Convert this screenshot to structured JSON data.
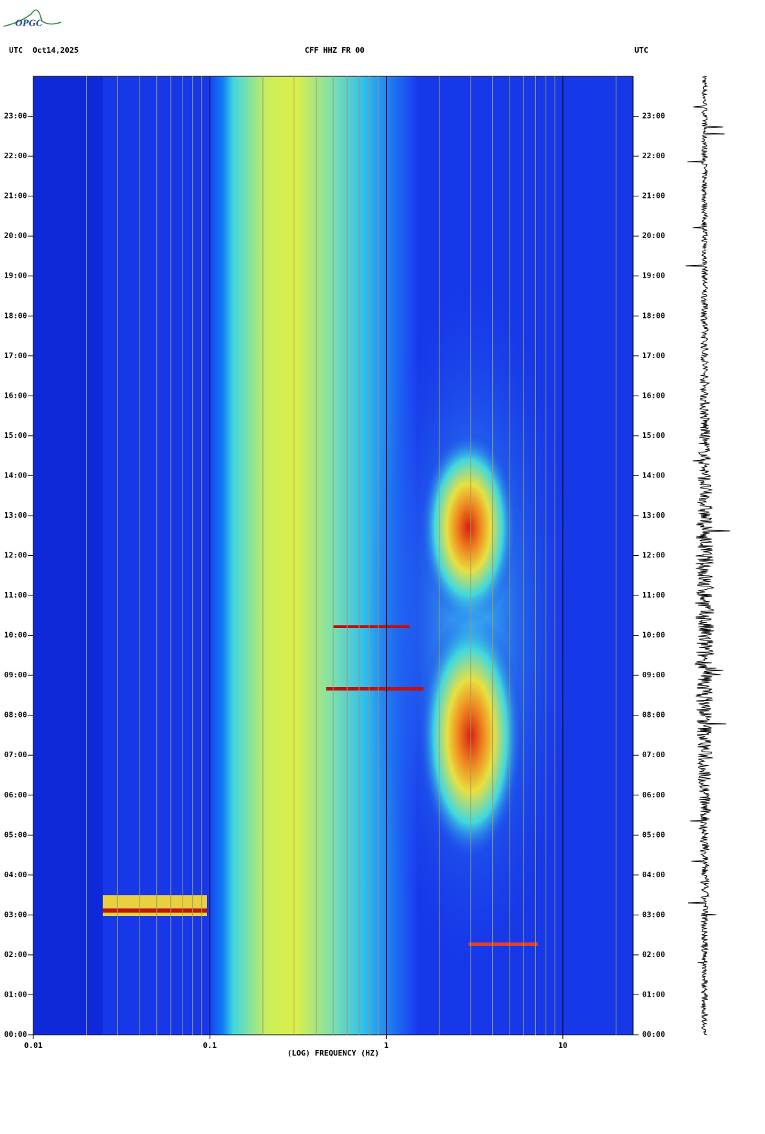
{
  "logo": "OPGC",
  "header": {
    "left_zone": "UTC",
    "date": "Oct14,2025",
    "station": "CFF HHZ FR 00",
    "right_zone": "UTC"
  },
  "chart_data": {
    "type": "spectrogram",
    "xlabel": "(LOG) FREQUENCY (HZ)",
    "xscale": "log",
    "xlim": [
      0.01,
      25
    ],
    "xticks": [
      0.01,
      0.1,
      1,
      10
    ],
    "xminorticks": [
      0.02,
      0.03,
      0.04,
      0.05,
      0.06,
      0.07,
      0.08,
      0.09,
      0.2,
      0.3,
      0.4,
      0.5,
      0.6,
      0.7,
      0.8,
      0.9,
      2,
      3,
      4,
      5,
      6,
      7,
      8,
      9,
      20
    ],
    "ylim": [
      0,
      24
    ],
    "yticks": [
      {
        "value": 0,
        "label": "00:00"
      },
      {
        "value": 1,
        "label": "01:00"
      },
      {
        "value": 2,
        "label": "02:00"
      },
      {
        "value": 3,
        "label": "03:00"
      },
      {
        "value": 4,
        "label": "04:00"
      },
      {
        "value": 5,
        "label": "05:00"
      },
      {
        "value": 6,
        "label": "06:00"
      },
      {
        "value": 7,
        "label": "07:00"
      },
      {
        "value": 8,
        "label": "08:00"
      },
      {
        "value": 9,
        "label": "09:00"
      },
      {
        "value": 10,
        "label": "10:00"
      },
      {
        "value": 11,
        "label": "11:00"
      },
      {
        "value": 12,
        "label": "12:00"
      },
      {
        "value": 13,
        "label": "13:00"
      },
      {
        "value": 14,
        "label": "14:00"
      },
      {
        "value": 15,
        "label": "15:00"
      },
      {
        "value": 16,
        "label": "16:00"
      },
      {
        "value": 17,
        "label": "17:00"
      },
      {
        "value": 18,
        "label": "18:00"
      },
      {
        "value": 19,
        "label": "19:00"
      },
      {
        "value": 20,
        "label": "20:00"
      },
      {
        "value": 21,
        "label": "21:00"
      },
      {
        "value": 22,
        "label": "22:00"
      },
      {
        "value": 23,
        "label": "23:00"
      }
    ]
  }
}
